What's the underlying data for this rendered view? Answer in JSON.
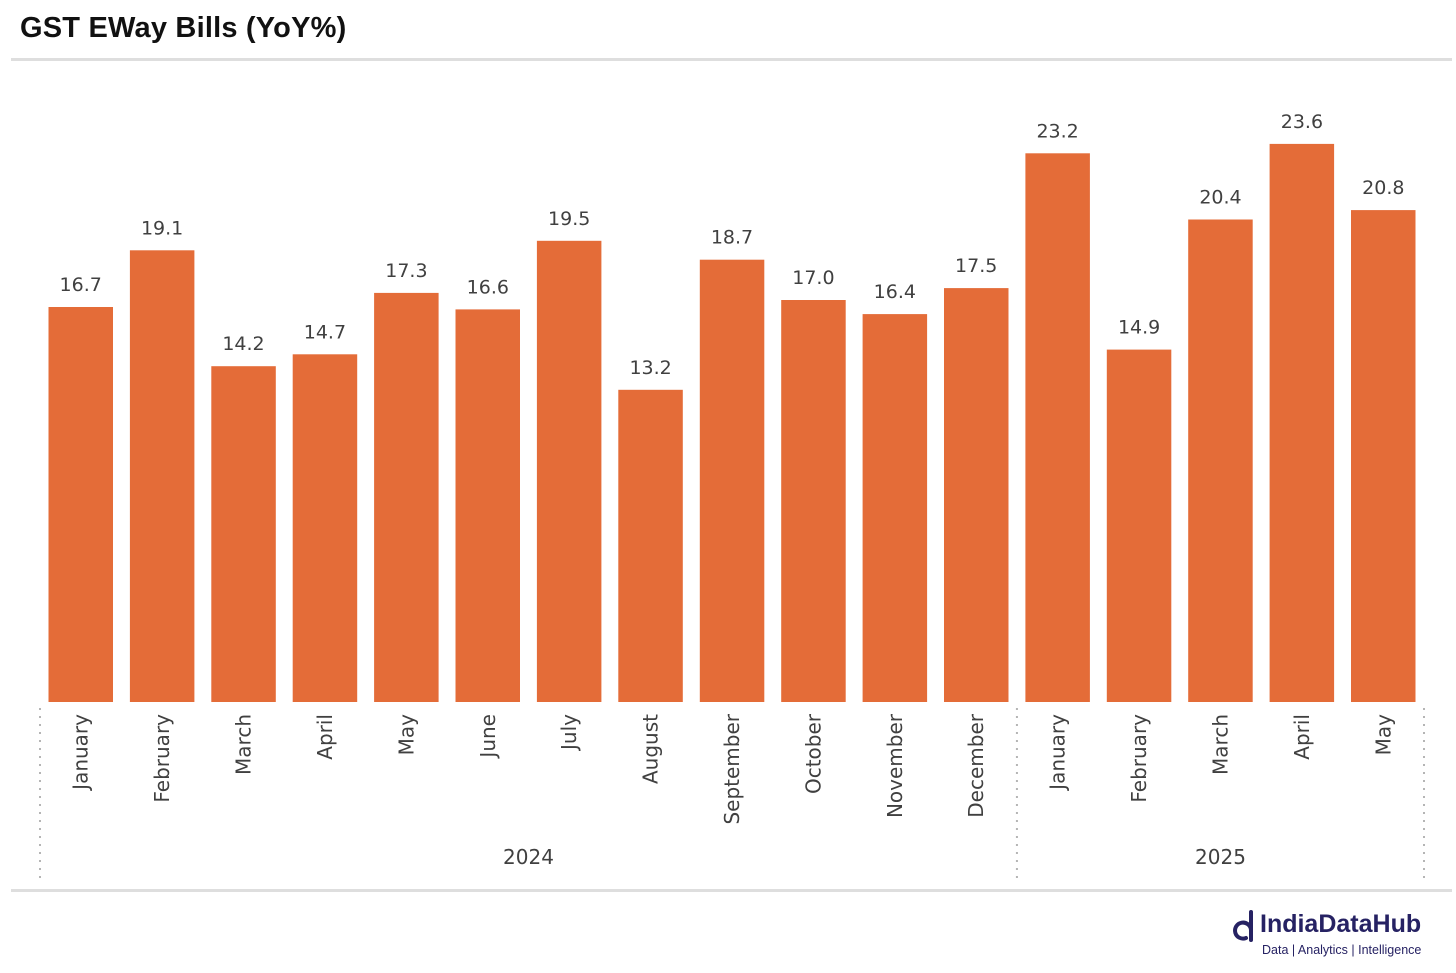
{
  "title": "GST EWay Bills (YoY%)",
  "brand": {
    "name": "IndiaDataHub",
    "tagline": "Data | Analytics | Intelligence",
    "color": "#262263",
    "icon": "indiadatahub-logo-icon"
  },
  "colors": {
    "bar": "#E46C38",
    "label": "#404040",
    "axis_dots": "#b5b5b5"
  },
  "chart_data": {
    "type": "bar",
    "title": "GST EWay Bills (YoY%)",
    "xlabel": "",
    "ylabel": "",
    "ylim": [
      0,
      25
    ],
    "grid": false,
    "legend": "none",
    "categories": [
      "January",
      "February",
      "March",
      "April",
      "May",
      "June",
      "July",
      "August",
      "September",
      "October",
      "November",
      "December",
      "January",
      "February",
      "March",
      "April",
      "May"
    ],
    "groups": [
      {
        "label": "2024",
        "start": 0,
        "end": 11
      },
      {
        "label": "2025",
        "start": 12,
        "end": 16
      }
    ],
    "values": [
      16.7,
      19.1,
      14.2,
      14.7,
      17.3,
      16.6,
      19.5,
      13.2,
      18.7,
      17.0,
      16.4,
      17.5,
      23.2,
      14.9,
      20.4,
      23.6,
      20.8
    ],
    "value_labels": [
      "16.7",
      "19.1",
      "14.2",
      "14.7",
      "17.3",
      "16.6",
      "19.5",
      "13.2",
      "18.7",
      "17.0",
      "16.4",
      "17.5",
      "23.2",
      "14.9",
      "20.4",
      "23.6",
      "20.8"
    ]
  }
}
